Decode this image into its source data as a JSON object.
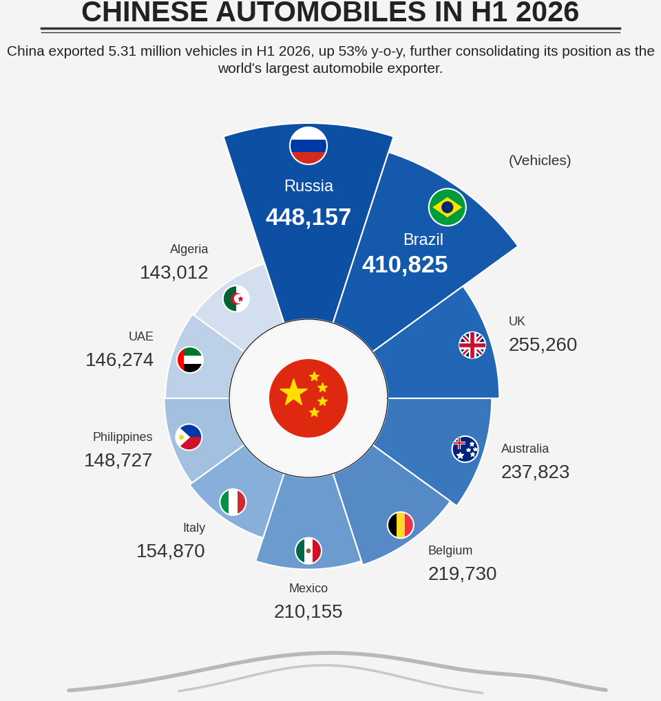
{
  "chart_data": {
    "type": "polar_bar",
    "title": "CHINESE AUTOMOBILES IN H1 2026",
    "subtitle": "China exported 5.31 million vehicles in H1 2026, up 53% y-o-y, further consolidating its position as the world's largest automobile exporter.",
    "ylabel": "(Vehicles)",
    "categories": [
      "Russia",
      "Brazil",
      "UK",
      "Australia",
      "Belgium",
      "Mexico",
      "Italy",
      "Philippines",
      "UAE",
      "Algeria"
    ],
    "values": [
      448157,
      410825,
      255260,
      237823,
      219730,
      210155,
      154870,
      148727,
      146274,
      143012
    ],
    "value_labels": [
      "448,157",
      "410,825",
      "255,260",
      "237,823",
      "219,730",
      "210,155",
      "154,870",
      "148,727",
      "146,274",
      "143,012"
    ],
    "colors": [
      "#0d4fa3",
      "#1459ac",
      "#2167b5",
      "#3a78be",
      "#568ac6",
      "#6c9bcf",
      "#88afd9",
      "#a3c0e0",
      "#bcd0e7",
      "#d3dfee"
    ],
    "data_labels": true,
    "tick_labels": false
  }
}
